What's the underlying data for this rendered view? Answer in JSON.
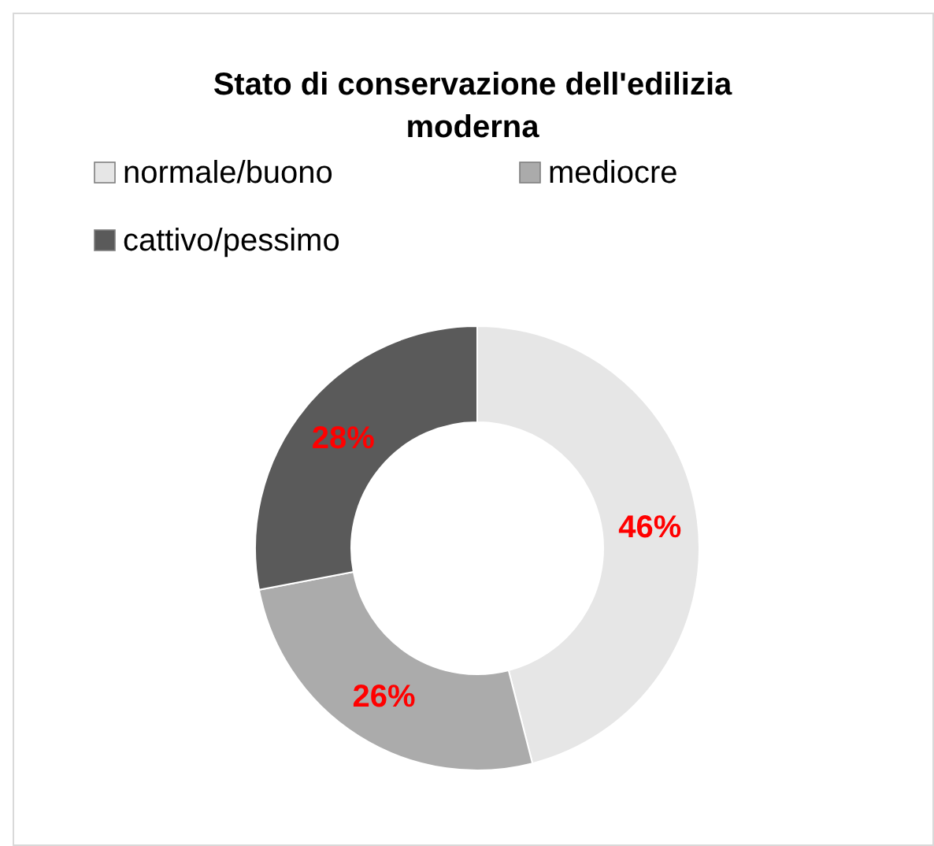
{
  "chart_data": {
    "type": "donut",
    "title": "Stato di conservazione dell'edilizia moderna",
    "categories": [
      "normale/buono",
      "mediocre",
      "cattivo/pessimo"
    ],
    "values": [
      46,
      26,
      28
    ],
    "colors": [
      "#e6e6e6",
      "#ababab",
      "#5a5a5a"
    ],
    "value_labels": [
      "46%",
      "26%",
      "28%"
    ],
    "legend": "top"
  }
}
